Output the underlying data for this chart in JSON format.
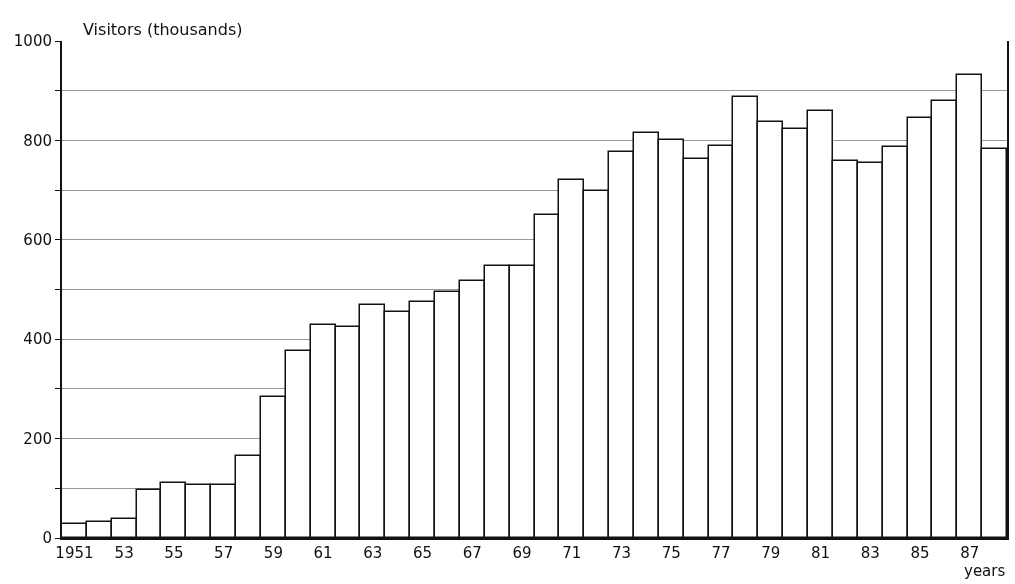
{
  "chart_data": {
    "type": "bar",
    "ylabel": "Visitors (thousands)",
    "xlabel": "years",
    "categories": [
      "1951",
      null,
      "53",
      null,
      "55",
      null,
      "57",
      null,
      "59",
      null,
      "61",
      null,
      "63",
      null,
      "65",
      null,
      "67",
      null,
      "69",
      null,
      "71",
      null,
      "73",
      null,
      "75",
      null,
      "77",
      null,
      "79",
      null,
      "81",
      null,
      "83",
      null,
      "85",
      null,
      "87",
      null
    ],
    "values": [
      28,
      33,
      39,
      97,
      110,
      106,
      107,
      166,
      284,
      377,
      429,
      424,
      469,
      455,
      475,
      494,
      518,
      547,
      547,
      650,
      720,
      698,
      776,
      814,
      801,
      762,
      789,
      888,
      837,
      822,
      859,
      759,
      754,
      787,
      846,
      879,
      931,
      782
    ],
    "color": "#ffffff",
    "ylim": [
      0,
      1000
    ],
    "yticks": [
      0,
      {
        "value": 100,
        "label": null
      },
      200,
      {
        "value": 300,
        "label": null
      },
      400,
      {
        "value": 500,
        "label": null
      },
      600,
      {
        "value": 700,
        "label": null
      },
      800,
      {
        "value": 900,
        "label": null
      },
      1000
    ],
    "grid": "y"
  }
}
